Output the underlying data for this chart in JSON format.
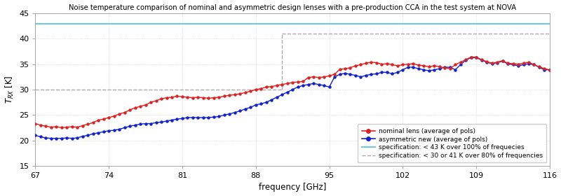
{
  "title": "Noise temperature comparison of nominal and asymmetric design lenses with a pre-production CCA in the test system at NOVA",
  "xlabel": "frequency [GHz]",
  "ylabel": "$T_{RX}$ [K]",
  "xlim": [
    67,
    116
  ],
  "ylim": [
    15,
    45
  ],
  "xticks": [
    67,
    74,
    81,
    88,
    95,
    102,
    109,
    116
  ],
  "yticks": [
    15,
    20,
    25,
    30,
    35,
    40,
    45
  ],
  "spec_43_y": 43,
  "spec_30_y": 30,
  "spec_41_y": 41,
  "spec_break_x": 90.5,
  "spec_color_43": "#6fc8e8",
  "spec_color_dashed": "#aaaaaa",
  "red_color": "#dd2222",
  "blue_color": "#1122cc",
  "legend_labels": [
    "nominal lens (average of pols)",
    "asymmetric new (average of pols)",
    "specification: < 43 K over 100% of frequecies",
    "specification: < 30 or 41 K over 80% of frequencies"
  ],
  "red_x": [
    67.0,
    67.5,
    68.0,
    68.5,
    69.0,
    69.5,
    70.0,
    70.5,
    71.0,
    71.5,
    72.0,
    72.5,
    73.0,
    73.5,
    74.0,
    74.5,
    75.0,
    75.5,
    76.0,
    76.5,
    77.0,
    77.5,
    78.0,
    78.5,
    79.0,
    79.5,
    80.0,
    80.5,
    81.0,
    81.5,
    82.0,
    82.5,
    83.0,
    83.5,
    84.0,
    84.5,
    85.0,
    85.5,
    86.0,
    86.5,
    87.0,
    87.5,
    88.0,
    88.5,
    89.0,
    89.5,
    90.0,
    90.5,
    91.0,
    91.5,
    92.0,
    92.5,
    93.0,
    93.5,
    94.0,
    94.5,
    95.0,
    95.5,
    96.0,
    96.5,
    97.0,
    97.5,
    98.0,
    98.5,
    99.0,
    99.5,
    100.0,
    100.5,
    101.0,
    101.5,
    102.0,
    102.5,
    103.0,
    103.5,
    104.0,
    104.5,
    105.0,
    105.5,
    106.0,
    106.5,
    107.0,
    107.5,
    108.0,
    108.5,
    109.0,
    109.5,
    110.0,
    110.5,
    111.0,
    111.5,
    112.0,
    112.5,
    113.0,
    113.5,
    114.0,
    114.5,
    115.0,
    115.5,
    116.0
  ],
  "red_y": [
    23.3,
    23.0,
    22.8,
    22.6,
    22.7,
    22.5,
    22.6,
    22.7,
    22.6,
    22.9,
    23.2,
    23.5,
    24.0,
    24.2,
    24.5,
    24.8,
    25.2,
    25.5,
    26.0,
    26.4,
    26.7,
    27.0,
    27.5,
    27.8,
    28.2,
    28.4,
    28.5,
    28.7,
    28.6,
    28.5,
    28.4,
    28.5,
    28.4,
    28.3,
    28.4,
    28.5,
    28.7,
    28.9,
    29.0,
    29.2,
    29.4,
    29.7,
    30.0,
    30.2,
    30.5,
    30.6,
    30.8,
    31.0,
    31.2,
    31.4,
    31.5,
    31.6,
    32.4,
    32.5,
    32.4,
    32.5,
    32.7,
    33.0,
    34.0,
    34.1,
    34.3,
    34.7,
    34.9,
    35.2,
    35.4,
    35.3,
    35.0,
    35.1,
    34.9,
    34.7,
    34.9,
    35.0,
    35.1,
    34.8,
    34.7,
    34.5,
    34.7,
    34.5,
    34.3,
    34.1,
    34.9,
    35.4,
    35.9,
    36.4,
    36.4,
    35.9,
    35.5,
    35.2,
    35.4,
    35.7,
    35.2,
    35.1,
    35.0,
    35.2,
    35.4,
    34.9,
    34.5,
    34.1,
    33.9
  ],
  "blue_x": [
    67.0,
    67.5,
    68.0,
    68.5,
    69.0,
    69.5,
    70.0,
    70.5,
    71.0,
    71.5,
    72.0,
    72.5,
    73.0,
    73.5,
    74.0,
    74.5,
    75.0,
    75.5,
    76.0,
    76.5,
    77.0,
    77.5,
    78.0,
    78.5,
    79.0,
    79.5,
    80.0,
    80.5,
    81.0,
    81.5,
    82.0,
    82.5,
    83.0,
    83.5,
    84.0,
    84.5,
    85.0,
    85.5,
    86.0,
    86.5,
    87.0,
    87.5,
    88.0,
    88.5,
    89.0,
    89.5,
    90.0,
    90.5,
    91.0,
    91.5,
    92.0,
    92.5,
    93.0,
    93.5,
    94.0,
    94.5,
    95.0,
    95.5,
    96.0,
    96.5,
    97.0,
    97.5,
    98.0,
    98.5,
    99.0,
    99.5,
    100.0,
    100.5,
    101.0,
    101.5,
    102.0,
    102.5,
    103.0,
    103.5,
    104.0,
    104.5,
    105.0,
    105.5,
    106.0,
    106.5,
    107.0,
    107.5,
    108.0,
    108.5,
    109.0,
    109.5,
    110.0,
    110.5,
    111.0,
    111.5,
    112.0,
    112.5,
    113.0,
    113.5,
    114.0,
    114.5,
    115.0,
    115.5,
    116.0
  ],
  "blue_y": [
    21.0,
    20.7,
    20.5,
    20.4,
    20.4,
    20.4,
    20.5,
    20.4,
    20.5,
    20.8,
    21.0,
    21.3,
    21.5,
    21.7,
    21.9,
    22.0,
    22.2,
    22.5,
    22.8,
    23.0,
    23.2,
    23.3,
    23.3,
    23.5,
    23.6,
    23.8,
    24.0,
    24.2,
    24.3,
    24.5,
    24.5,
    24.5,
    24.5,
    24.5,
    24.6,
    24.7,
    25.0,
    25.2,
    25.5,
    25.8,
    26.2,
    26.5,
    27.0,
    27.2,
    27.5,
    28.0,
    28.5,
    29.0,
    29.5,
    30.0,
    30.5,
    30.8,
    31.0,
    31.2,
    31.0,
    30.8,
    30.5,
    32.5,
    33.0,
    33.2,
    33.0,
    32.8,
    32.5,
    32.8,
    33.0,
    33.1,
    33.4,
    33.4,
    33.1,
    33.4,
    33.9,
    34.4,
    34.4,
    34.1,
    33.9,
    33.7,
    33.9,
    34.1,
    34.4,
    34.4,
    33.9,
    34.9,
    35.8,
    36.3,
    36.3,
    35.8,
    35.4,
    35.1,
    35.3,
    35.6,
    35.1,
    34.9,
    34.7,
    34.9,
    35.1,
    34.9,
    34.4,
    33.9,
    33.9
  ]
}
